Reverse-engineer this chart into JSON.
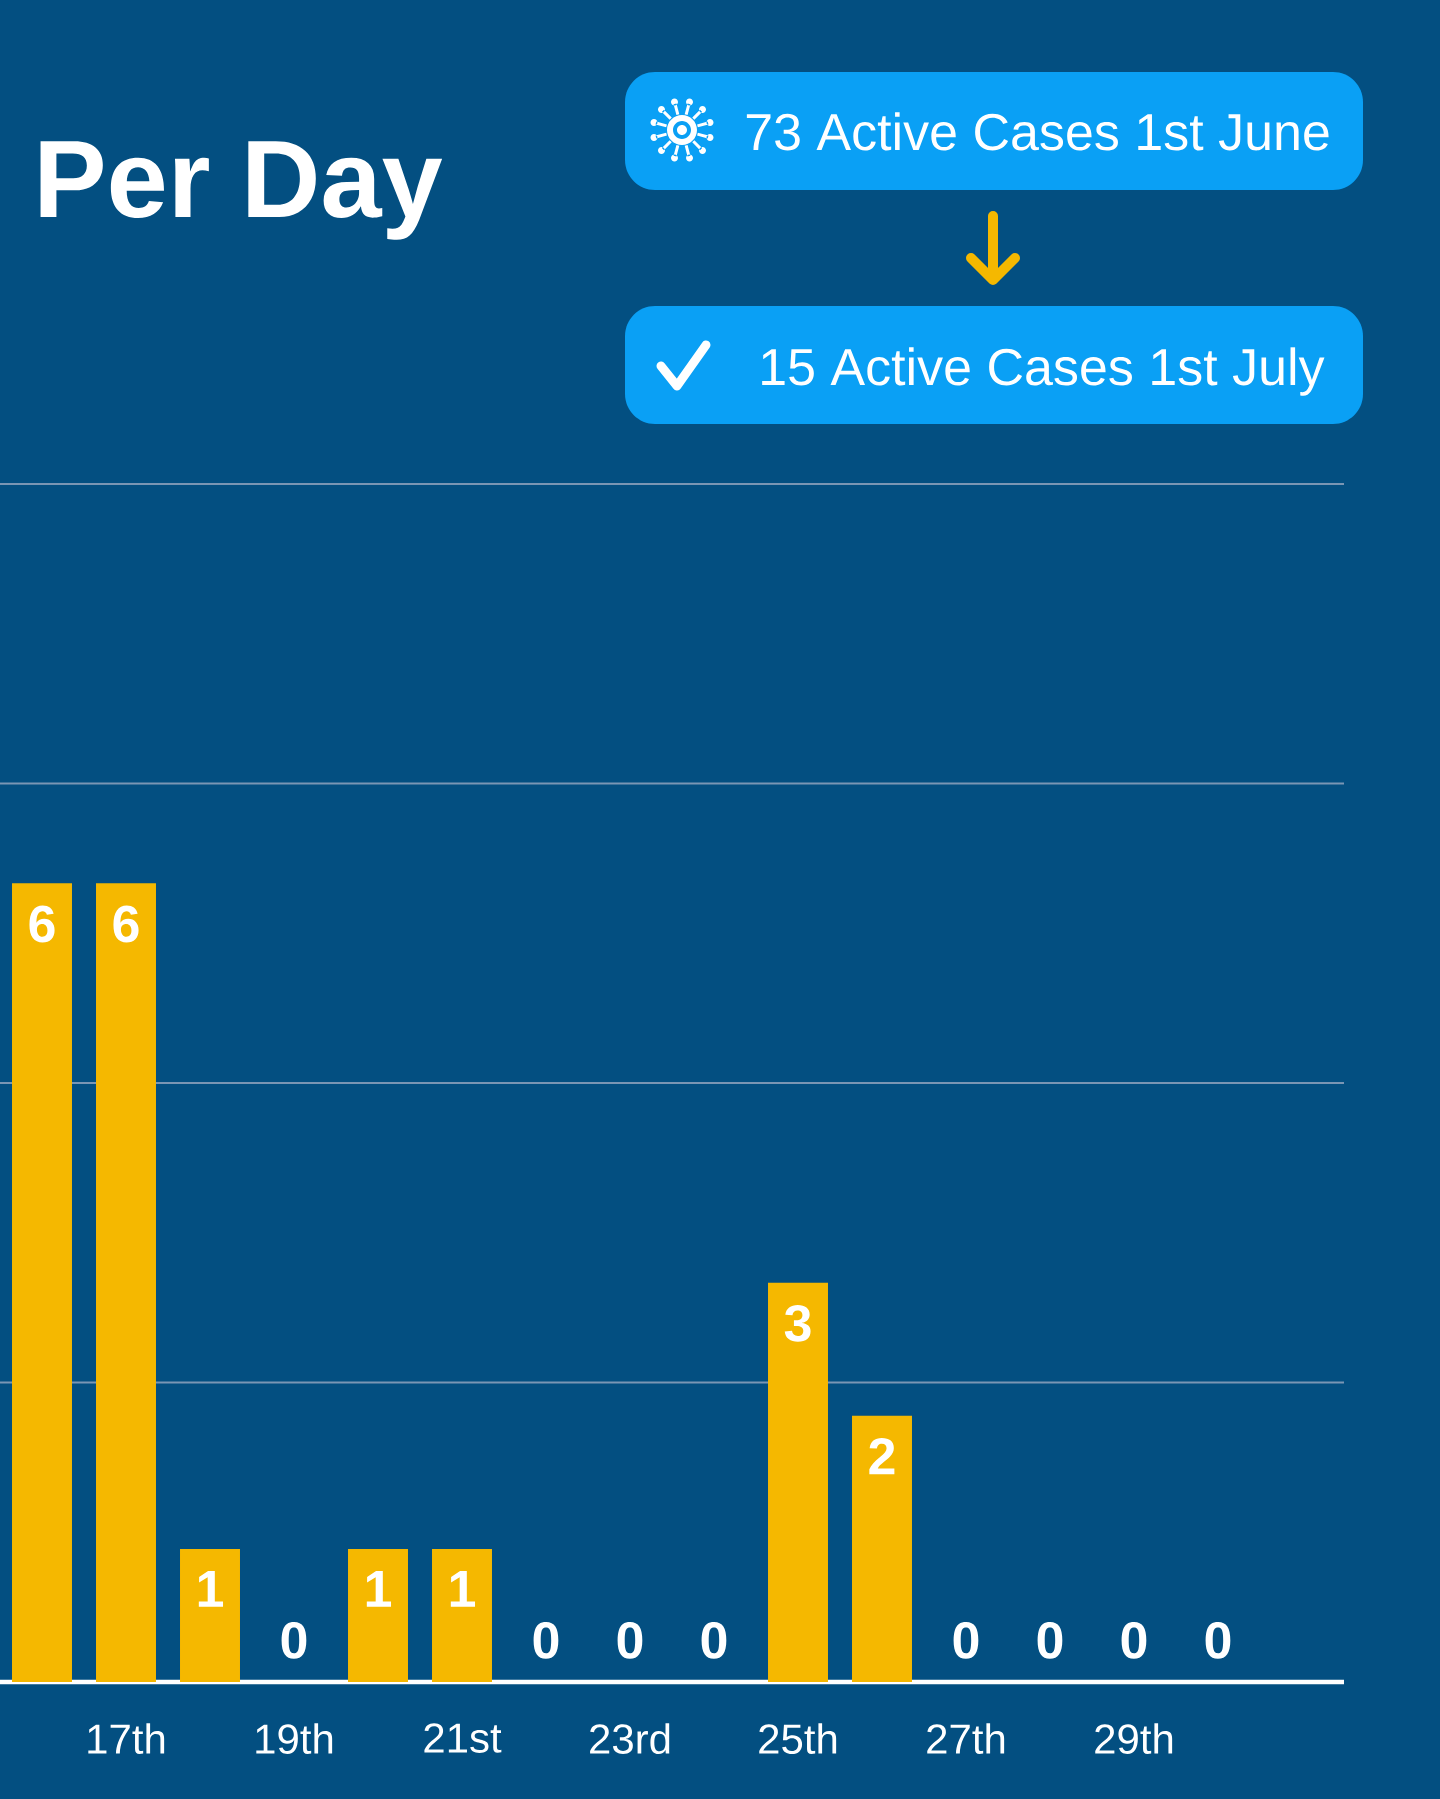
{
  "chart_data": {
    "type": "bar",
    "title": "Per Day",
    "categories": [
      null,
      "17th",
      null,
      "19th",
      null,
      "21st",
      null,
      "23rd",
      null,
      "25th",
      null,
      "27th",
      null,
      "29th",
      null
    ],
    "values": [
      6,
      6,
      1,
      0,
      1,
      1,
      0,
      0,
      0,
      3,
      2,
      0,
      0,
      0,
      0
    ],
    "color": "#f5b800",
    "ylim": [
      0,
      9
    ],
    "yticks": [
      {
        "value": 2.25,
        "label": null
      },
      {
        "value": 4.5,
        "label": null
      },
      {
        "value": 6.75,
        "label": null
      },
      {
        "value": 9,
        "label": null
      }
    ],
    "grid": "y",
    "tick_labels": "x",
    "data_labels": true,
    "annotations": [
      "73 Active Cases 1st June",
      "15 Active Cases 1st July"
    ]
  }
}
